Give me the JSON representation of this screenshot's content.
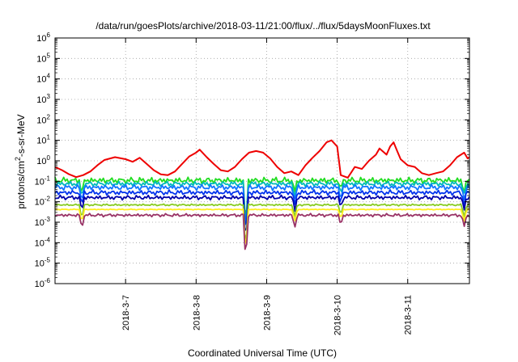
{
  "chart_data": {
    "type": "line",
    "title": "/data/run/goesPlots/archive/2018-03-11/21:00/flux/../flux/5daysMoonFluxes.txt",
    "xlabel": "Coordinated Universal Time (UTC)",
    "ylabel_main": "protons/cm",
    "ylabel_sup": "2",
    "ylabel_rest": "-s-sr-MeV",
    "y_scale": "log",
    "ylim_exp": [
      -6,
      6
    ],
    "y_ticks": [
      {
        "exp": -6,
        "base": "10",
        "sup": "-6"
      },
      {
        "exp": -5,
        "base": "10",
        "sup": "-5"
      },
      {
        "exp": -4,
        "base": "10",
        "sup": "-4"
      },
      {
        "exp": -3,
        "base": "10",
        "sup": "-3"
      },
      {
        "exp": -2,
        "base": "10",
        "sup": "-2"
      },
      {
        "exp": -1,
        "base": "10",
        "sup": "-1"
      },
      {
        "exp": 0,
        "base": "10",
        "sup": "0"
      },
      {
        "exp": 1,
        "base": "10",
        "sup": "1"
      },
      {
        "exp": 2,
        "base": "10",
        "sup": "2"
      },
      {
        "exp": 3,
        "base": "10",
        "sup": "3"
      },
      {
        "exp": 4,
        "base": "10",
        "sup": "4"
      },
      {
        "exp": 5,
        "base": "10",
        "sup": "5"
      },
      {
        "exp": 6,
        "base": "10",
        "sup": "6"
      }
    ],
    "xlim_days": [
      6.0,
      11.875
    ],
    "x_ticks": [
      {
        "day": 7,
        "label": "2018-3-7"
      },
      {
        "day": 8,
        "label": "2018-3-8"
      },
      {
        "day": 9,
        "label": "2018-3-9"
      },
      {
        "day": 10,
        "label": "2018-3-10"
      },
      {
        "day": 11,
        "label": "2018-3-11"
      }
    ],
    "grid": true,
    "series": [
      {
        "color": "#ee0000",
        "points": [
          [
            6.0,
            0.5
          ],
          [
            6.1,
            0.35
          ],
          [
            6.2,
            0.22
          ],
          [
            6.3,
            0.16
          ],
          [
            6.4,
            0.2
          ],
          [
            6.5,
            0.3
          ],
          [
            6.6,
            0.6
          ],
          [
            6.7,
            1.1
          ],
          [
            6.85,
            1.5
          ],
          [
            7.0,
            1.2
          ],
          [
            7.1,
            0.9
          ],
          [
            7.2,
            1.4
          ],
          [
            7.3,
            0.7
          ],
          [
            7.4,
            0.35
          ],
          [
            7.5,
            0.22
          ],
          [
            7.6,
            0.2
          ],
          [
            7.7,
            0.3
          ],
          [
            7.8,
            0.7
          ],
          [
            7.9,
            1.6
          ],
          [
            8.0,
            2.5
          ],
          [
            8.05,
            3.5
          ],
          [
            8.15,
            1.5
          ],
          [
            8.25,
            0.7
          ],
          [
            8.35,
            0.35
          ],
          [
            8.45,
            0.3
          ],
          [
            8.55,
            0.5
          ],
          [
            8.65,
            1.2
          ],
          [
            8.75,
            2.5
          ],
          [
            8.85,
            3.0
          ],
          [
            8.95,
            2.5
          ],
          [
            9.05,
            1.3
          ],
          [
            9.15,
            0.5
          ],
          [
            9.25,
            0.25
          ],
          [
            9.35,
            0.3
          ],
          [
            9.45,
            0.2
          ],
          [
            9.55,
            0.6
          ],
          [
            9.65,
            1.4
          ],
          [
            9.75,
            3.0
          ],
          [
            9.85,
            8.0
          ],
          [
            9.92,
            10.0
          ],
          [
            10.0,
            5.0
          ],
          [
            10.05,
            0.2
          ],
          [
            10.15,
            0.15
          ],
          [
            10.25,
            0.5
          ],
          [
            10.35,
            0.4
          ],
          [
            10.45,
            1.0
          ],
          [
            10.55,
            2.0
          ],
          [
            10.6,
            4.0
          ],
          [
            10.7,
            2.0
          ],
          [
            10.75,
            5.0
          ],
          [
            10.8,
            8.0
          ],
          [
            10.85,
            3.0
          ],
          [
            10.9,
            1.2
          ],
          [
            11.0,
            0.6
          ],
          [
            11.1,
            0.5
          ],
          [
            11.2,
            0.25
          ],
          [
            11.3,
            0.2
          ],
          [
            11.4,
            0.25
          ],
          [
            11.5,
            0.3
          ],
          [
            11.6,
            0.6
          ],
          [
            11.7,
            1.5
          ],
          [
            11.8,
            2.5
          ],
          [
            11.85,
            1.3
          ],
          [
            11.875,
            1.5
          ]
        ]
      },
      {
        "color": "#22dd22",
        "base": 0.11,
        "amp": 0.5
      },
      {
        "color": "#00bbbb",
        "base": 0.075,
        "amp": 0.4
      },
      {
        "color": "#1177ff",
        "base": 0.05,
        "amp": 0.45
      },
      {
        "color": "#0033ee",
        "base": 0.028,
        "amp": 0.4
      },
      {
        "color": "#0000aa",
        "base": 0.016,
        "amp": 0.35
      },
      {
        "color": "#88cc22",
        "base": 0.007,
        "amp": 0.15
      },
      {
        "color": "#ffee22",
        "base": 0.0042,
        "amp": 0.08
      },
      {
        "color": "#993366",
        "base": 0.0022,
        "amp": 0.25
      }
    ]
  }
}
